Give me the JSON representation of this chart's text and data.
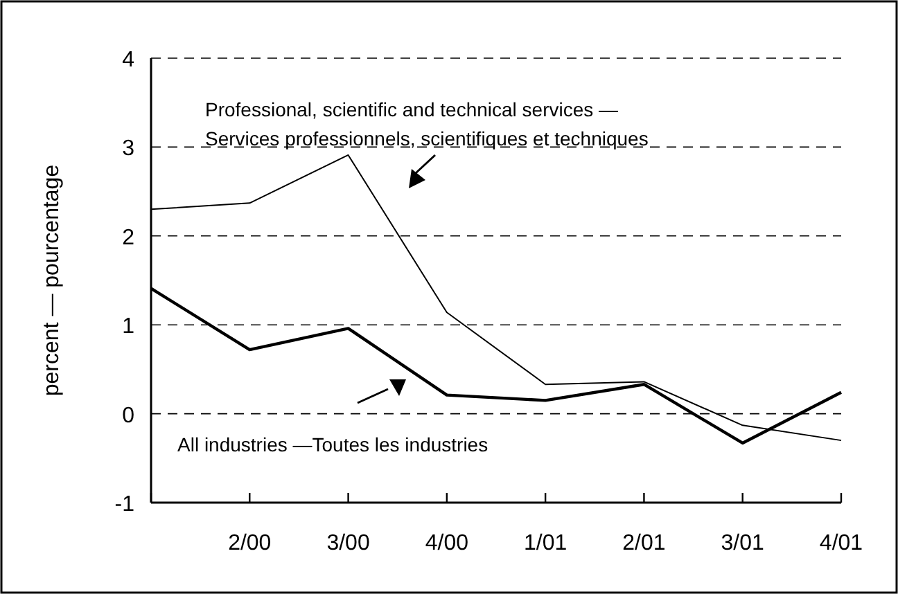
{
  "chart_data": {
    "type": "line",
    "ylabel": "percent — pourcentage",
    "categories": [
      null,
      "2/00",
      "3/00",
      "4/00",
      "1/01",
      "2/01",
      "3/01",
      "4/01"
    ],
    "series": [
      {
        "name": "Professional, scientific and technical services —\nServices professionnels, scientifiques et techniques",
        "color": "#000000",
        "values": [
          2.3,
          2.37,
          2.91,
          1.14,
          0.33,
          0.36,
          -0.13,
          -0.3
        ]
      },
      {
        "name": "All industries —Toutes les industries",
        "color": "#000000",
        "values": [
          1.41,
          0.72,
          0.96,
          0.21,
          0.15,
          0.33,
          -0.33,
          0.24
        ]
      }
    ],
    "ylim": [
      -1,
      4
    ],
    "yticks": [
      -1,
      0,
      1,
      2,
      3,
      4
    ],
    "grid": "y",
    "line_style": "solid",
    "marker": "none"
  }
}
